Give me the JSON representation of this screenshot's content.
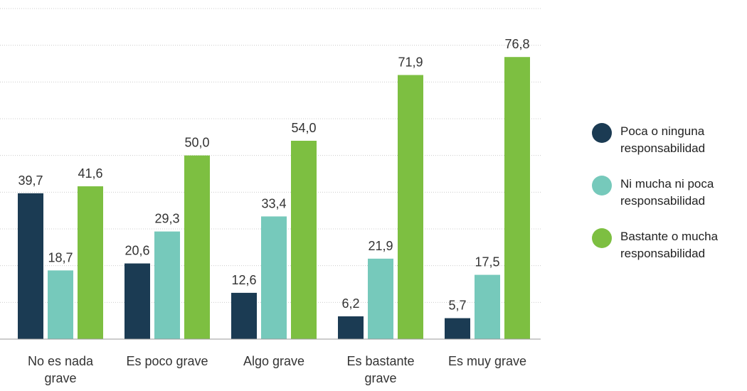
{
  "chart_data": {
    "type": "bar",
    "categories": [
      "No es nada grave",
      "Es poco grave",
      "Algo grave",
      "Es bastante grave",
      "Es muy grave"
    ],
    "series": [
      {
        "name": "Poca o ninguna responsabilidad",
        "color": "#1b3b53",
        "values": [
          39.7,
          20.6,
          12.6,
          6.2,
          5.7
        ],
        "value_labels": [
          "39,7",
          "20,6",
          "12,6",
          "6,2",
          "5,7"
        ]
      },
      {
        "name": "Ni mucha ni poca responsabilidad",
        "color": "#76c9bb",
        "values": [
          18.7,
          29.3,
          33.4,
          21.9,
          17.5
        ],
        "value_labels": [
          "18,7",
          "29,3",
          "33,4",
          "21,9",
          "17,5"
        ]
      },
      {
        "name": "Bastante o mucha responsabilidad",
        "color": "#7dbf41",
        "values": [
          41.6,
          50.0,
          54.0,
          71.9,
          76.8
        ],
        "value_labels": [
          "41,6",
          "50,0",
          "54,0",
          "71,9",
          "76,8"
        ]
      }
    ],
    "ylim": [
      0,
      90
    ],
    "yticks": [
      0,
      10,
      20,
      30,
      40,
      50,
      60,
      70,
      80,
      90
    ],
    "grid": true,
    "legend": "right"
  }
}
